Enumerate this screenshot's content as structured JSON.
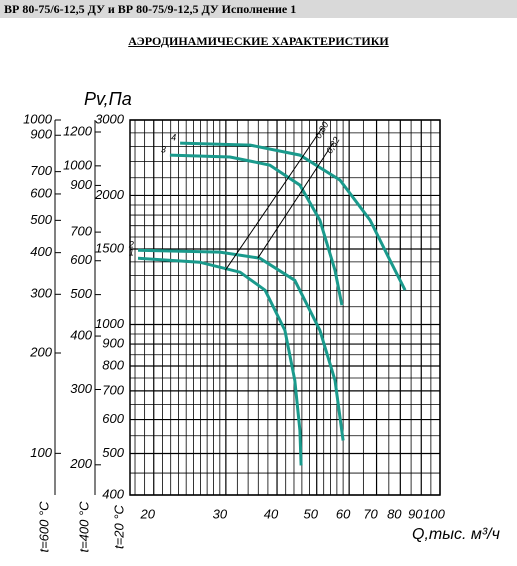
{
  "header": "ВР 80-75/6-12,5 ДУ и ВР 80-75/9-12,5 ДУ Исполнение 1",
  "chart_data": {
    "type": "line",
    "title": "АЭРОДИНАМИЧЕСКИЕ ХАРАКТЕРИСТИКИ",
    "y_label": "Pv,Па",
    "x_label": "Q,тыс. м³/ч",
    "temperature_label": "t=20 °C",
    "xscale": "log",
    "yscale": "log",
    "grid": true,
    "xlim": [
      17.5,
      100
    ],
    "ylim": [
      400,
      3000
    ],
    "xticks": [
      20,
      30,
      40,
      50,
      60,
      70,
      80,
      90,
      100
    ],
    "yticks": [
      400,
      500,
      600,
      700,
      800,
      900,
      1000,
      1500,
      2000,
      3000
    ],
    "x_minor_grid": [
      18,
      19,
      21,
      22,
      23,
      24,
      25,
      26,
      27,
      28,
      29,
      32,
      34,
      36,
      38,
      42,
      44,
      46,
      48,
      52,
      54,
      56,
      58,
      65,
      75,
      85,
      95
    ],
    "y_minor_grid": [
      450,
      550,
      650,
      750,
      850,
      950,
      1100,
      1200,
      1300,
      1400,
      1600,
      1700,
      1800,
      1900,
      2200,
      2400,
      2600,
      2800
    ],
    "secondary_axes": [
      {
        "label": "t=600 °C",
        "ylim": [
          75,
          1000
        ],
        "yticks": [
          100,
          200,
          300,
          400,
          500,
          600,
          700,
          900,
          1000
        ]
      },
      {
        "label": "t=400 °C",
        "ylim": [
          170,
          1280
        ],
        "yticks": [
          200,
          300,
          400,
          500,
          600,
          700,
          900,
          1000,
          1200
        ]
      }
    ],
    "series": [
      {
        "name": "1",
        "color": "#1a9a8c",
        "x": [
          18.3,
          25.9,
          32.5,
          37.4,
          41.8,
          44.2,
          45.5,
          45.8
        ],
        "values": [
          1428,
          1397,
          1324,
          1202,
          969,
          741,
          566,
          469
        ]
      },
      {
        "name": "2",
        "color": "#1a9a8c",
        "x": [
          18.3,
          29.0,
          36.3,
          44.2,
          50.9,
          55.4,
          58.0
        ],
        "values": [
          1490,
          1475,
          1428,
          1268,
          969,
          741,
          536
        ]
      },
      {
        "name": "3",
        "color": "#1a9a8c",
        "x": [
          21.9,
          30.7,
          38.4,
          45.5,
          50.9,
          55.4,
          57.6
        ],
        "values": [
          2485,
          2459,
          2355,
          2114,
          1751,
          1338,
          1109
        ]
      },
      {
        "name": "4",
        "color": "#1a9a8c",
        "x": [
          23.2,
          34.4,
          45.5,
          57.0,
          67.5,
          75.5,
          82.2
        ],
        "values": [
          2650,
          2622,
          2485,
          2172,
          1751,
          1412,
          1202
        ]
      }
    ],
    "efficiency_lines": [
      {
        "name": "0,80",
        "x": [
          29.9,
          51.5
        ],
        "values": [
          1338,
          2873
        ]
      },
      {
        "name": "0,82",
        "x": [
          35.9,
          54.8
        ],
        "values": [
          1428,
          2650
        ]
      }
    ]
  }
}
